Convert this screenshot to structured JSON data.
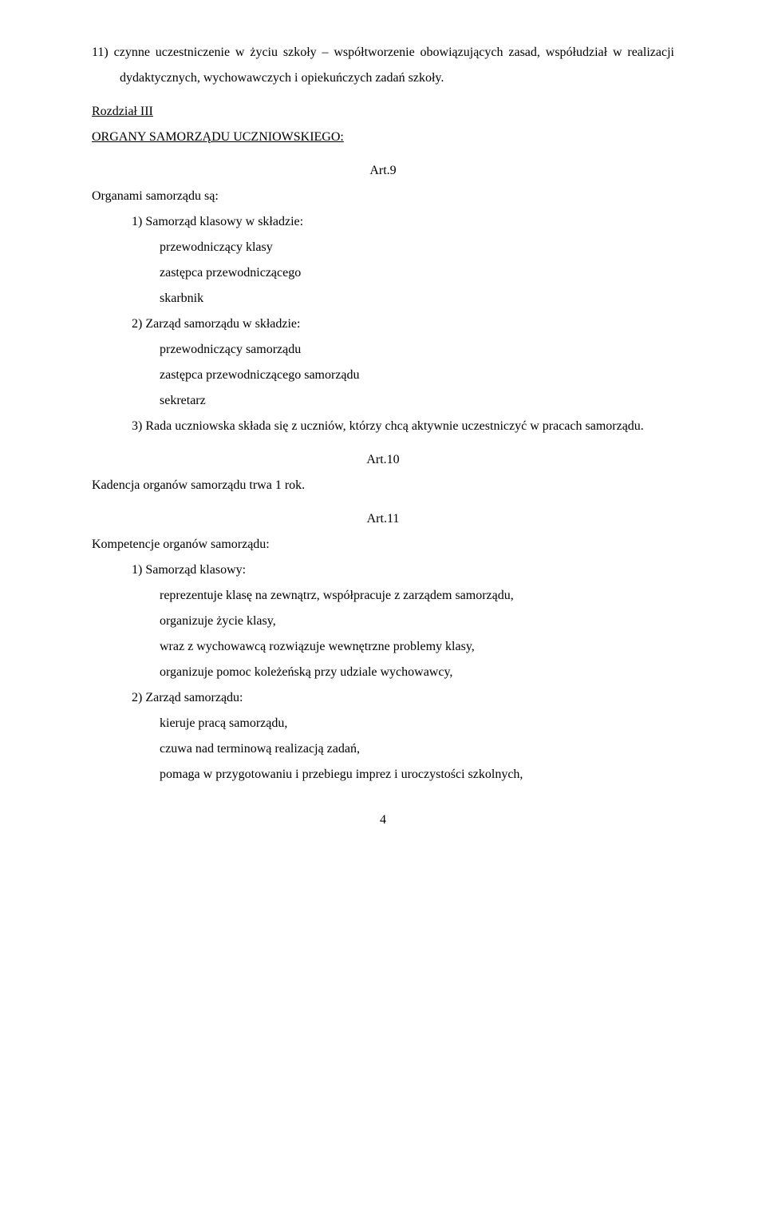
{
  "opening_item": {
    "number": "11)",
    "text": "czynne uczestniczenie w życiu szkoły – współtworzenie obowiązujących zasad, współudział w realizacji dydaktycznych, wychowawczych i opiekuńczych zadań szkoły."
  },
  "chapter": {
    "line1": "Rozdział III",
    "line2": "ORGANY SAMORZĄDU UCZNIOWSKIEGO:"
  },
  "art9": {
    "label": "Art.9",
    "intro": "Organami samorządu są:",
    "item1": {
      "number": "1)",
      "text": "Samorząd klasowy w składzie:",
      "sub1": "przewodniczący klasy",
      "sub2": "zastępca przewodniczącego",
      "sub3": "skarbnik"
    },
    "item2": {
      "number": "2)",
      "text": "Zarząd samorządu w składzie:",
      "sub1": "przewodniczący samorządu",
      "sub2": "zastępca przewodniczącego samorządu",
      "sub3": "sekretarz"
    },
    "item3": {
      "number": "3)",
      "text": "Rada uczniowska składa się z uczniów, którzy chcą aktywnie uczestniczyć w pracach samorządu."
    }
  },
  "art10": {
    "label": "Art.10",
    "text": "Kadencja organów samorządu trwa 1 rok."
  },
  "art11": {
    "label": "Art.11",
    "intro": "Kompetencje organów samorządu:",
    "item1": {
      "number": "1)",
      "text": "Samorząd klasowy:",
      "sub1": "reprezentuje klasę na zewnątrz, współpracuje z zarządem samorządu,",
      "sub2": "organizuje życie klasy,",
      "sub3": "wraz z wychowawcą rozwiązuje wewnętrzne problemy klasy,",
      "sub4": "organizuje pomoc koleżeńską przy udziale wychowawcy,"
    },
    "item2": {
      "number": "2)",
      "text": "Zarząd samorządu:",
      "sub1": "kieruje pracą samorządu,",
      "sub2": "czuwa nad terminową realizacją zadań,",
      "sub3": "pomaga w przygotowaniu i przebiegu imprez i uroczystości szkolnych,"
    }
  },
  "page_number": "4"
}
